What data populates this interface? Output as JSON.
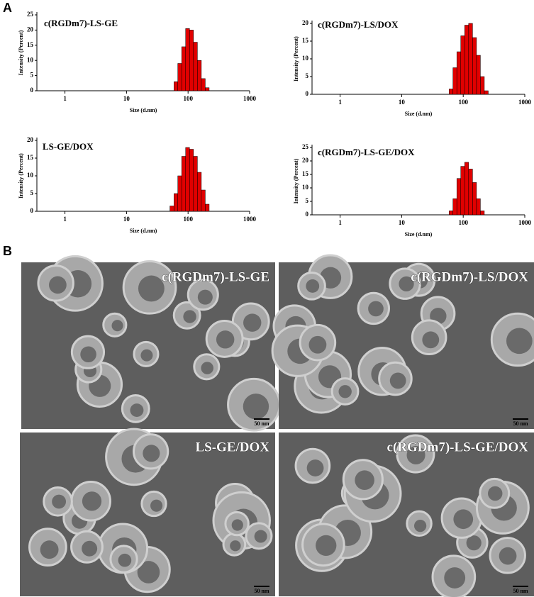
{
  "panel_labels": [
    "A",
    "B"
  ],
  "chart_data": [
    {
      "type": "histogram",
      "title": "c(RGDm7)-LS-GE",
      "xlabel": "Size (d.nm)",
      "ylabel": "Intensity (Percent)",
      "bins": [
        59.1,
        68.1,
        78.8,
        91.3,
        105.7,
        122.4,
        141.8,
        164.2,
        190.1,
        220.2
      ],
      "values": [
        3,
        9,
        14.5,
        20.5,
        20,
        16,
        10,
        4,
        1
      ],
      "color": "#e00000",
      "log_x": true,
      "xlim": [
        0.35,
        1000
      ],
      "xticks": [
        1,
        10,
        100,
        1000
      ],
      "ylim": [
        0,
        25
      ],
      "yticks": [
        0,
        5,
        10,
        15,
        20,
        25
      ]
    },
    {
      "type": "histogram",
      "title": "c(RGDm7)-LS/DOX",
      "xlabel": "Size (d.nm)",
      "ylabel": "Intensity (Percent)",
      "bins": [
        59.1,
        68.1,
        78.8,
        91.3,
        105.7,
        122.4,
        141.8,
        164.2,
        190.1,
        220.2,
        255
      ],
      "values": [
        1.5,
        7.5,
        12,
        16.5,
        19.5,
        20,
        16,
        11,
        5,
        1
      ],
      "color": "#e00000",
      "log_x": true,
      "xlim": [
        0.35,
        1000
      ],
      "xticks": [
        1,
        10,
        100,
        1000
      ],
      "ylim": [
        0,
        20
      ],
      "yticks": [
        0,
        5,
        10,
        15,
        20
      ]
    },
    {
      "type": "histogram",
      "title": "LS-GE/DOX",
      "xlabel": "Size (d.nm)",
      "ylabel": "Intensity (Percent)",
      "bins": [
        50.7,
        59.1,
        68.1,
        78.8,
        91.3,
        105.7,
        122.4,
        141.8,
        164.2,
        190.1,
        220.2
      ],
      "values": [
        1.5,
        5,
        10,
        15.5,
        18,
        17.5,
        15.5,
        11,
        6,
        2
      ],
      "color": "#e00000",
      "log_x": true,
      "xlim": [
        0.35,
        1000
      ],
      "xticks": [
        1,
        10,
        100,
        1000
      ],
      "ylim": [
        0,
        20
      ],
      "yticks": [
        0,
        5,
        10,
        15,
        20
      ]
    },
    {
      "type": "histogram",
      "title": "c(RGDm7)-LS-GE/DOX",
      "xlabel": "Size (d.nm)",
      "ylabel": "Intensity (Percent)",
      "bins": [
        59.1,
        68.1,
        78.8,
        91.3,
        105.7,
        122.4,
        141.8,
        164.2,
        190.1,
        220.2
      ],
      "values": [
        1.5,
        6,
        13.5,
        18,
        19.5,
        17,
        12,
        6,
        1.5
      ],
      "color": "#e00000",
      "log_x": true,
      "xlim": [
        0.35,
        1000
      ],
      "xticks": [
        1,
        10,
        100,
        1000
      ],
      "ylim": [
        0,
        25
      ],
      "yticks": [
        0,
        5,
        10,
        15,
        20,
        25
      ]
    }
  ],
  "images": [
    {
      "label": "c(RGDm7)-LS-GE",
      "scale_bar": "50 nm"
    },
    {
      "label": "c(RGDm7)-LS/DOX",
      "scale_bar": "50 nm"
    },
    {
      "label": "LS-GE/DOX",
      "scale_bar": "50 nm"
    },
    {
      "label": "c(RGDm7)-LS-GE/DOX",
      "scale_bar": "50 nm"
    }
  ]
}
